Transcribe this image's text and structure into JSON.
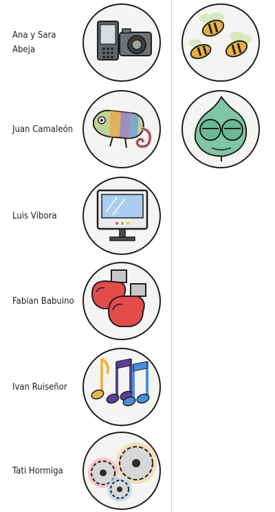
{
  "players": [
    {
      "name": "Ana y Sara Abeja",
      "icon": "phone-camera-icon"
    },
    {
      "name": "Juan Camaleón",
      "icon": "chameleon-icon"
    },
    {
      "name": "Luis Víbora",
      "icon": "computer-monitor-icon"
    },
    {
      "name": "Fabian Babuino",
      "icon": "boxing-gloves-icon"
    },
    {
      "name": "Ivan Ruiseñor",
      "icon": "music-notes-icon"
    },
    {
      "name": "Tati Hormiga",
      "icon": "gears-icon"
    }
  ],
  "matched_tokens": [
    {
      "icon": "bees-icon"
    },
    {
      "icon": "chameleon-face-icon"
    }
  ],
  "colors": {
    "token_bg": "#f4f4f2",
    "token_border": "#1d1d1d",
    "divider": "#c9c9c9"
  }
}
